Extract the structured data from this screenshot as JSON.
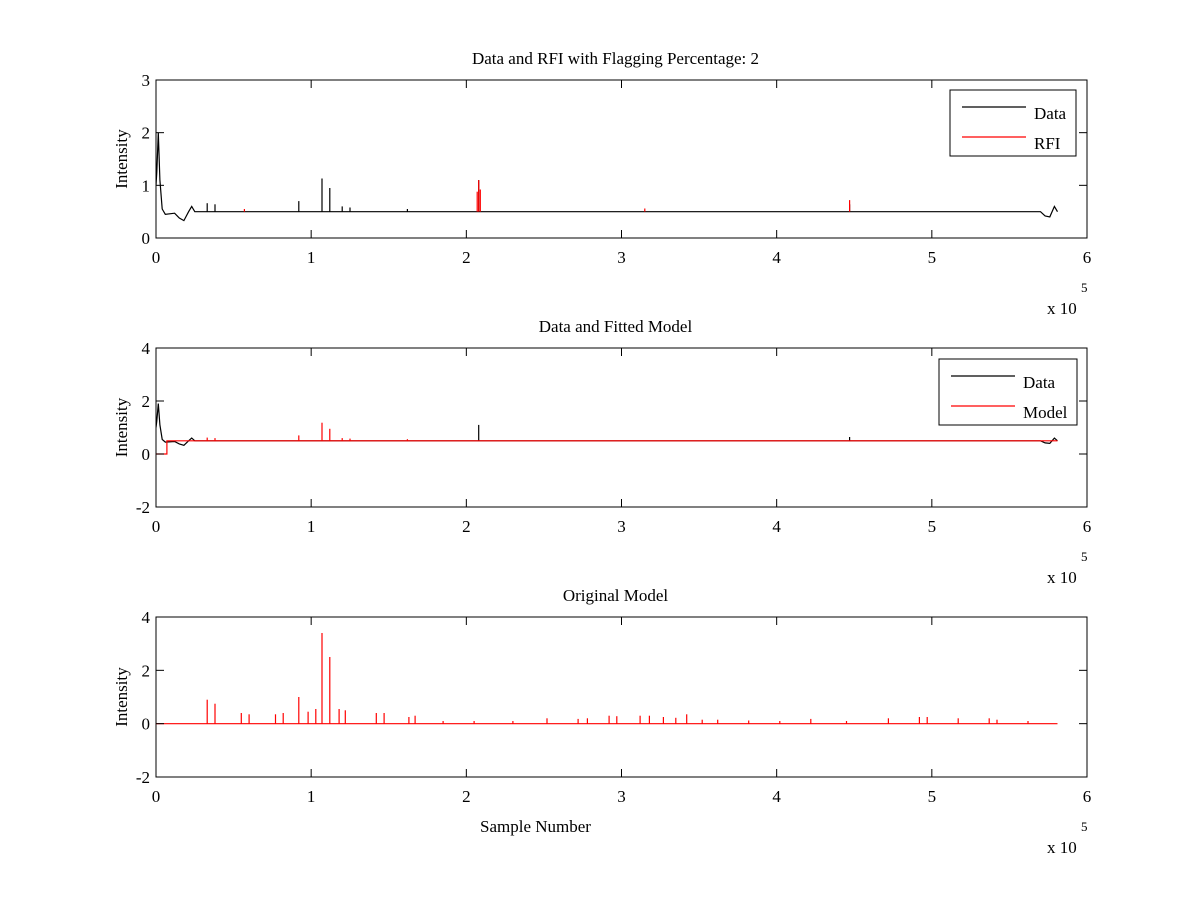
{
  "figure": {
    "background": "#ffffff"
  },
  "chart_data": [
    {
      "type": "line",
      "title": "Data and RFI with Flagging Percentage: 2",
      "xlabel": "",
      "ylabel": "Intensity",
      "xlim": [
        0,
        6
      ],
      "ylim": [
        0,
        3
      ],
      "xticks": [
        "0",
        "1",
        "2",
        "3",
        "4",
        "5",
        "6"
      ],
      "yticks": [
        "0",
        "1",
        "2",
        "3"
      ],
      "x_exponent": {
        "base": "x 10",
        "power": "5"
      },
      "grid": false,
      "legend": {
        "position": "top-right",
        "entries": [
          "Data",
          "RFI"
        ]
      },
      "series": [
        {
          "name": "Data",
          "color": "#000000",
          "baseline": 0.5,
          "points": [
            [
              0,
              1.0
            ],
            [
              0.005,
              1.25
            ],
            [
              0.015,
              2.0
            ],
            [
              0.025,
              1.1
            ],
            [
              0.04,
              0.55
            ],
            [
              0.06,
              0.45
            ],
            [
              0.12,
              0.47
            ],
            [
              0.15,
              0.38
            ],
            [
              0.18,
              0.33
            ],
            [
              0.21,
              0.5
            ],
            [
              0.23,
              0.6
            ],
            [
              0.25,
              0.5
            ],
            [
              5.7,
              0.5
            ],
            [
              5.73,
              0.42
            ],
            [
              5.76,
              0.4
            ],
            [
              5.79,
              0.6
            ],
            [
              5.81,
              0.5
            ]
          ],
          "spikes": [
            [
              0.33,
              0.66
            ],
            [
              0.38,
              0.64
            ],
            [
              0.92,
              0.7
            ],
            [
              1.07,
              1.13
            ],
            [
              1.12,
              0.95
            ],
            [
              1.2,
              0.6
            ],
            [
              1.25,
              0.58
            ],
            [
              1.62,
              0.55
            ],
            [
              2.08,
              1.1
            ],
            [
              4.47,
              0.64
            ]
          ]
        },
        {
          "name": "RFI",
          "color": "#ff0000",
          "baseline": null,
          "points": [],
          "spikes": [
            [
              0.57,
              0.55
            ],
            [
              2.07,
              0.88
            ],
            [
              2.08,
              1.1
            ],
            [
              2.09,
              0.92
            ],
            [
              3.15,
              0.56
            ],
            [
              4.47,
              0.72
            ]
          ]
        }
      ]
    },
    {
      "type": "line",
      "title": "Data and Fitted Model",
      "xlabel": "",
      "ylabel": "Intensity",
      "xlim": [
        0,
        6
      ],
      "ylim": [
        -2,
        4
      ],
      "xticks": [
        "0",
        "1",
        "2",
        "3",
        "4",
        "5",
        "6"
      ],
      "yticks": [
        "-2",
        "0",
        "2",
        "4"
      ],
      "x_exponent": {
        "base": "x 10",
        "power": "5"
      },
      "grid": false,
      "legend": {
        "position": "top-right",
        "entries": [
          "Data",
          "Model"
        ]
      },
      "series": [
        {
          "name": "Data",
          "color": "#000000",
          "baseline": 0.5,
          "points": [
            [
              0,
              1.0
            ],
            [
              0.005,
              1.25
            ],
            [
              0.015,
              1.9
            ],
            [
              0.025,
              1.1
            ],
            [
              0.04,
              0.55
            ],
            [
              0.06,
              0.45
            ],
            [
              0.12,
              0.47
            ],
            [
              0.15,
              0.38
            ],
            [
              0.18,
              0.33
            ],
            [
              0.21,
              0.5
            ],
            [
              0.23,
              0.6
            ],
            [
              0.25,
              0.5
            ],
            [
              5.7,
              0.5
            ],
            [
              5.73,
              0.42
            ],
            [
              5.76,
              0.4
            ],
            [
              5.79,
              0.6
            ],
            [
              5.81,
              0.5
            ]
          ],
          "spikes": [
            [
              2.08,
              1.1
            ],
            [
              4.47,
              0.64
            ]
          ]
        },
        {
          "name": "Model",
          "color": "#ff0000",
          "baseline": 0.5,
          "points": [
            [
              0,
              0.0
            ],
            [
              0.07,
              0.0
            ],
            [
              0.07,
              0.5
            ],
            [
              5.81,
              0.5
            ]
          ],
          "spikes": [
            [
              0.33,
              0.62
            ],
            [
              0.38,
              0.6
            ],
            [
              0.92,
              0.7
            ],
            [
              1.07,
              1.18
            ],
            [
              1.12,
              0.95
            ],
            [
              1.2,
              0.6
            ],
            [
              1.25,
              0.58
            ],
            [
              1.62,
              0.56
            ]
          ]
        }
      ]
    },
    {
      "type": "line",
      "title": "Original Model",
      "xlabel": "Sample Number",
      "ylabel": "Intensity",
      "xlim": [
        0,
        6
      ],
      "ylim": [
        -2,
        4
      ],
      "xticks": [
        "0",
        "1",
        "2",
        "3",
        "4",
        "5",
        "6"
      ],
      "yticks": [
        "-2",
        "0",
        "2",
        "4"
      ],
      "x_exponent": {
        "base": "x 10",
        "power": "5"
      },
      "grid": false,
      "legend": null,
      "series": [
        {
          "name": "",
          "color": "#ff0000",
          "baseline": 0,
          "points": [
            [
              0,
              0.0
            ],
            [
              5.81,
              0.0
            ]
          ],
          "spikes": [
            [
              0.33,
              0.9
            ],
            [
              0.38,
              0.75
            ],
            [
              0.55,
              0.4
            ],
            [
              0.6,
              0.35
            ],
            [
              0.77,
              0.35
            ],
            [
              0.82,
              0.4
            ],
            [
              0.92,
              1.0
            ],
            [
              0.98,
              0.45
            ],
            [
              1.03,
              0.55
            ],
            [
              1.07,
              3.4
            ],
            [
              1.12,
              2.5
            ],
            [
              1.18,
              0.55
            ],
            [
              1.22,
              0.5
            ],
            [
              1.42,
              0.4
            ],
            [
              1.47,
              0.4
            ],
            [
              1.63,
              0.25
            ],
            [
              1.67,
              0.3
            ],
            [
              1.85,
              0.1
            ],
            [
              2.05,
              0.1
            ],
            [
              2.3,
              0.1
            ],
            [
              2.52,
              0.2
            ],
            [
              2.72,
              0.18
            ],
            [
              2.78,
              0.2
            ],
            [
              2.92,
              0.3
            ],
            [
              2.97,
              0.28
            ],
            [
              3.12,
              0.3
            ],
            [
              3.18,
              0.3
            ],
            [
              3.27,
              0.25
            ],
            [
              3.35,
              0.22
            ],
            [
              3.42,
              0.35
            ],
            [
              3.52,
              0.15
            ],
            [
              3.62,
              0.15
            ],
            [
              3.82,
              0.12
            ],
            [
              4.02,
              0.1
            ],
            [
              4.22,
              0.18
            ],
            [
              4.45,
              0.1
            ],
            [
              4.72,
              0.2
            ],
            [
              4.92,
              0.25
            ],
            [
              4.97,
              0.25
            ],
            [
              5.17,
              0.2
            ],
            [
              5.37,
              0.2
            ],
            [
              5.42,
              0.15
            ],
            [
              5.62,
              0.1
            ]
          ]
        }
      ]
    }
  ]
}
